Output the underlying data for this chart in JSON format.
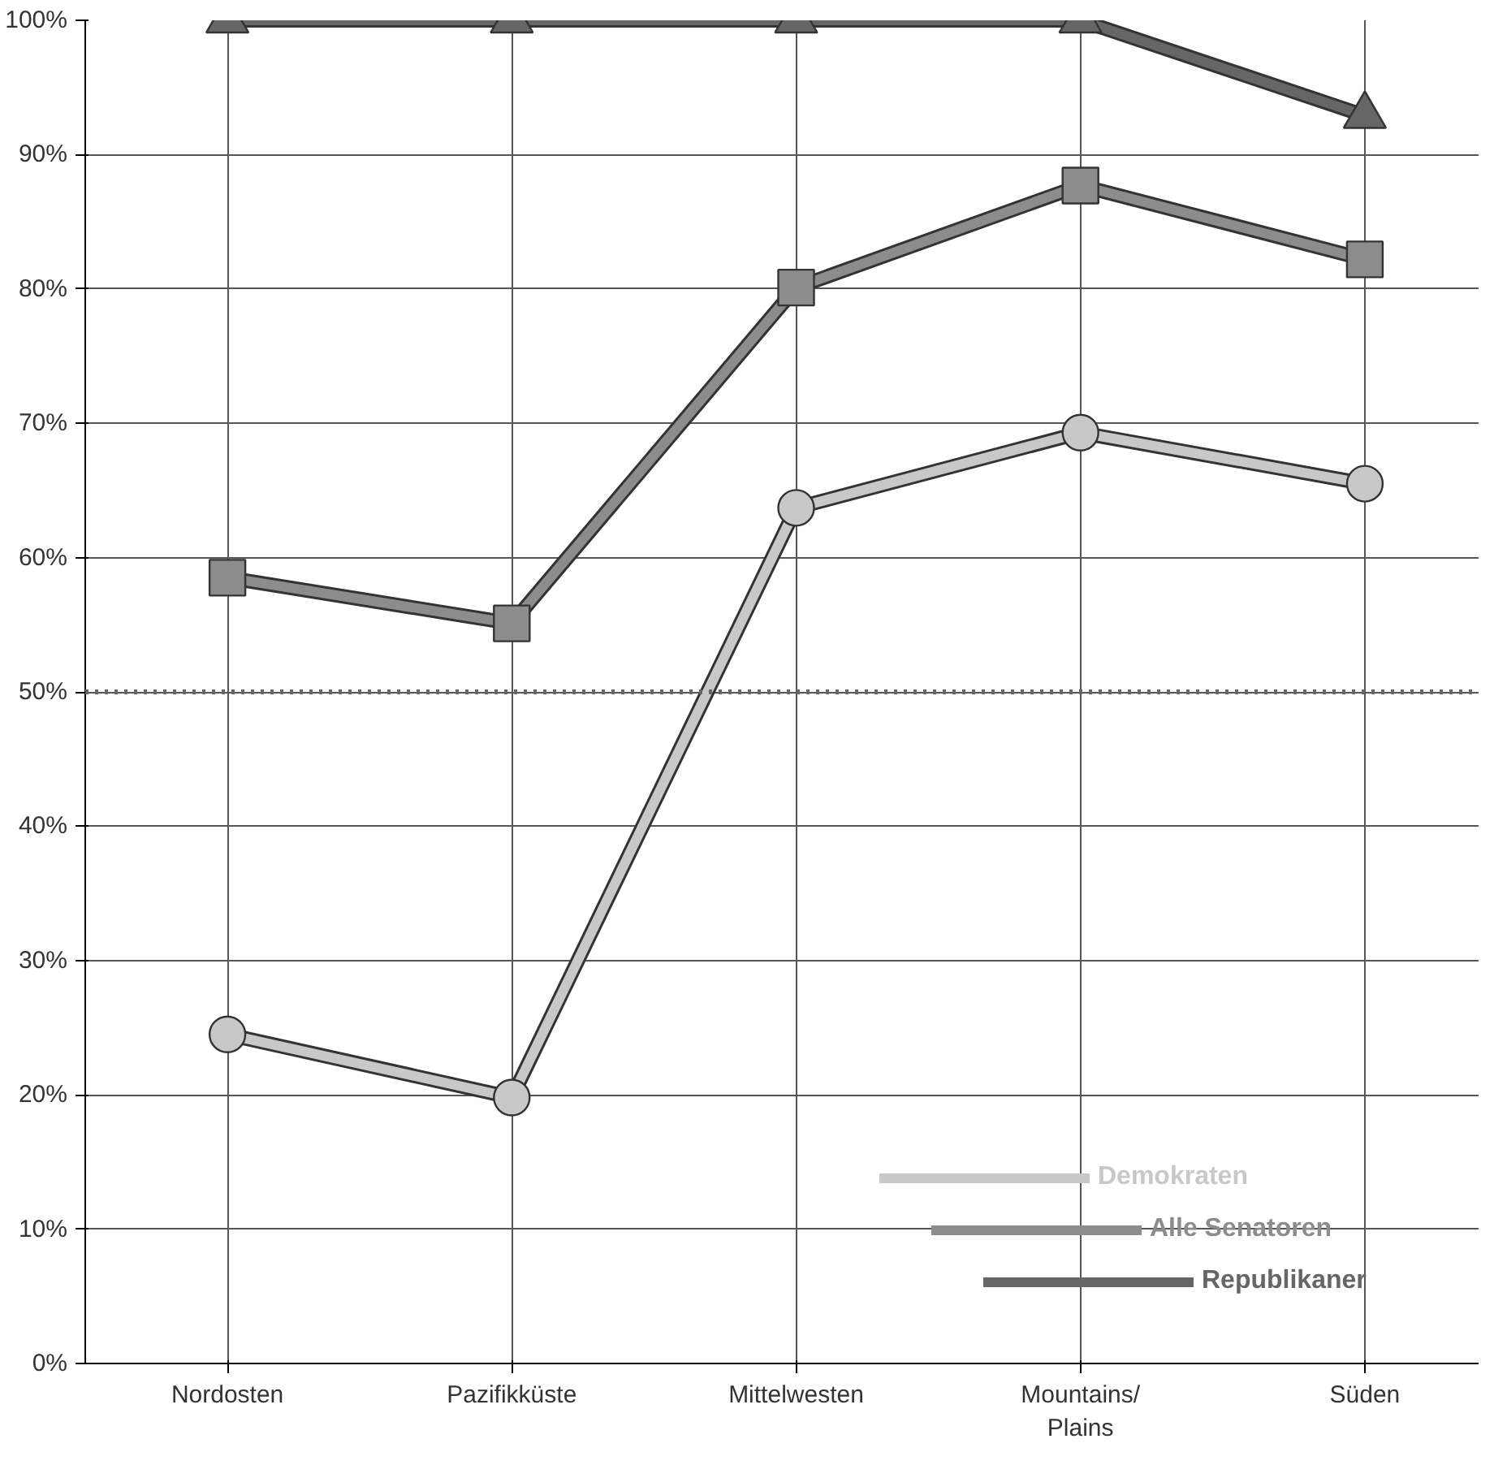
{
  "chart_data": {
    "type": "line",
    "categories": [
      "Nordosten",
      "Pazifikküste",
      "Mittelwesten",
      "Mountains/\nPlains",
      "Süden"
    ],
    "series": [
      {
        "name": "Demokraten",
        "color": "#c8c8c8",
        "marker": "circle",
        "values": [
          24.5,
          19.8,
          63.7,
          69.3,
          65.5
        ]
      },
      {
        "name": "Alle Senatoren",
        "color": "#8c8c8c",
        "marker": "square",
        "values": [
          58.5,
          55.1,
          80.1,
          87.7,
          82.2
        ]
      },
      {
        "name": "Republikaner",
        "color": "#666666",
        "marker": "triangle",
        "values": [
          100,
          100,
          100,
          100,
          92.9
        ]
      }
    ],
    "ylim": [
      0,
      100
    ],
    "yticks": [
      {
        "value": 0,
        "label": "0%"
      },
      {
        "value": 10,
        "label": "10%"
      },
      {
        "value": 20,
        "label": "20%"
      },
      {
        "value": 30,
        "label": "30%"
      },
      {
        "value": 40,
        "label": "40%"
      },
      {
        "value": 50,
        "label": "50%"
      },
      {
        "value": 60,
        "label": "60%"
      },
      {
        "value": 70,
        "label": "70%"
      },
      {
        "value": 80,
        "label": "80%"
      },
      {
        "value": 90,
        "label": "90%"
      },
      {
        "value": 100,
        "label": "100%"
      }
    ],
    "ref_lines": [
      {
        "axis": "y",
        "value": 50,
        "color": "#666666",
        "line_style": "dotted"
      }
    ],
    "grid": true,
    "legend": "bottom right",
    "line_style": "solid"
  }
}
